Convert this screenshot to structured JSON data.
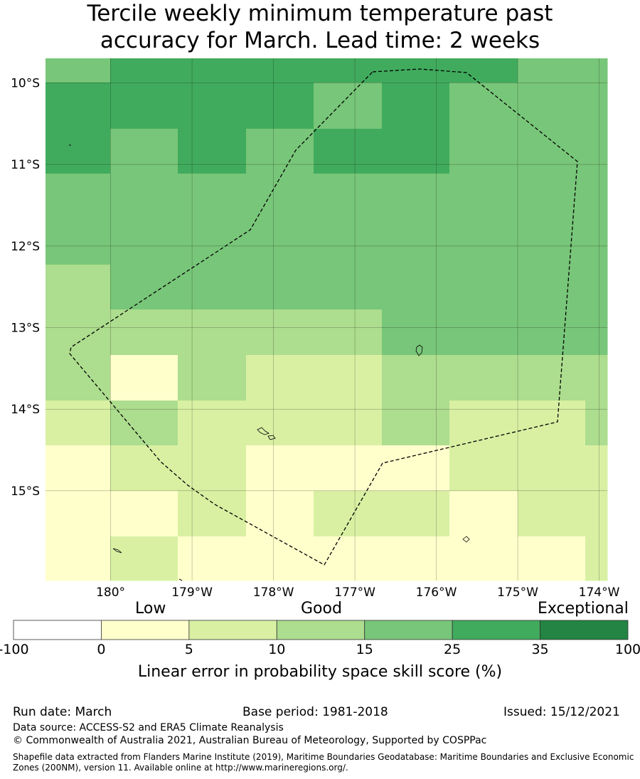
{
  "title_line1": "Tercile weekly minimum temperature past",
  "title_line2": "accuracy for March. Lead time: 2 weeks",
  "map": {
    "lon_range": [
      -180.8,
      -173.9
    ],
    "lat_range": [
      -16.1,
      -9.7
    ],
    "lat_ticks": [
      {
        "value": -10,
        "label": "10°S"
      },
      {
        "value": -11,
        "label": "11°S"
      },
      {
        "value": -12,
        "label": "12°S"
      },
      {
        "value": -13,
        "label": "13°S"
      },
      {
        "value": -14,
        "label": "14°S"
      },
      {
        "value": -15,
        "label": "15°S"
      }
    ],
    "lon_ticks": [
      {
        "value": -180,
        "label": "180°"
      },
      {
        "value": -179,
        "label": "179°W"
      },
      {
        "value": -178,
        "label": "178°W"
      },
      {
        "value": -177,
        "label": "177°W"
      },
      {
        "value": -176,
        "label": "176°W"
      },
      {
        "value": -175,
        "label": "175°W"
      },
      {
        "value": -174,
        "label": "174°W"
      }
    ]
  },
  "colorbar": {
    "words": {
      "low": "Low",
      "good": "Good",
      "exceptional": "Exceptional"
    },
    "tick_labels": [
      "-100",
      "0",
      "5",
      "10",
      "15",
      "25",
      "35",
      "100"
    ],
    "colors": [
      "#ffffff",
      "#ffffcc",
      "#d9f0a3",
      "#addd8e",
      "#78c679",
      "#41ab5d",
      "#238443"
    ],
    "label": "Linear error in probability space skill score (%)"
  },
  "footer": {
    "run_date": "Run date: March",
    "base_period": "Base period: 1981-2018",
    "issued": "Issued: 15/12/2021",
    "data_source": "Data source: ACCESS-S2 and ERA5 Climate Reanalysis",
    "copyright": "© Commonwealth of Australia 2021, Australian Bureau of Meteorology, Supported by COSPPac",
    "shapefile": "Shapefile data extracted from Flanders Marine Institute (2019), Maritime Boundaries Geodatabase: Maritime Boundaries and Exclusive Economic Zones (200NM), version 11. Available online at http://www.marineregions.org/."
  }
}
